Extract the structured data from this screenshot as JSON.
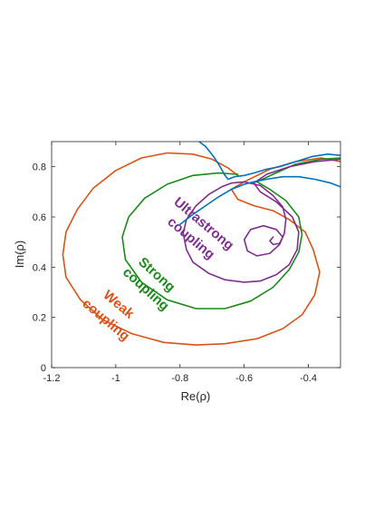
{
  "chart_data": {
    "type": "line",
    "xlabel": "Re(ρ)",
    "ylabel": "Im(ρ)",
    "xlim": [
      -1.2,
      -0.3
    ],
    "ylim": [
      0,
      0.9
    ],
    "xticks": [
      -1.2,
      -1,
      -0.8,
      -0.6,
      -0.4
    ],
    "xtick_labels": [
      "-1.2",
      "-1",
      "-0.8",
      "-0.6",
      "-0.4"
    ],
    "yticks": [
      0,
      0.2,
      0.4,
      0.6,
      0.8
    ],
    "ytick_labels": [
      "0",
      "0.2",
      "0.4",
      "0.6",
      "0.8"
    ],
    "grid": false,
    "series": [
      {
        "color": "#d95319",
        "points": [
          [
            -0.3,
            0.82
          ],
          [
            -0.36,
            0.835
          ],
          [
            -0.44,
            0.82
          ],
          [
            -0.52,
            0.79
          ],
          [
            -0.6,
            0.74
          ],
          [
            -0.64,
            0.71
          ],
          [
            -0.62,
            0.67
          ],
          [
            -0.57,
            0.645
          ],
          [
            -0.51,
            0.625
          ],
          [
            -0.46,
            0.59
          ],
          [
            -0.41,
            0.54
          ],
          [
            -0.385,
            0.47
          ],
          [
            -0.365,
            0.38
          ],
          [
            -0.38,
            0.29
          ],
          [
            -0.42,
            0.21
          ],
          [
            -0.48,
            0.155
          ],
          [
            -0.56,
            0.115
          ],
          [
            -0.66,
            0.095
          ],
          [
            -0.75,
            0.09
          ],
          [
            -0.85,
            0.1
          ],
          [
            -0.95,
            0.135
          ],
          [
            -1.04,
            0.19
          ],
          [
            -1.11,
            0.27
          ],
          [
            -1.155,
            0.36
          ],
          [
            -1.165,
            0.45
          ],
          [
            -1.155,
            0.54
          ],
          [
            -1.12,
            0.63
          ],
          [
            -1.07,
            0.715
          ],
          [
            -1.0,
            0.785
          ],
          [
            -0.92,
            0.835
          ],
          [
            -0.84,
            0.855
          ],
          [
            -0.76,
            0.85
          ],
          [
            -0.7,
            0.83
          ],
          [
            -0.65,
            0.795
          ],
          [
            -0.62,
            0.765
          ]
        ]
      },
      {
        "color": "#1a8a1a",
        "points": [
          [
            -0.3,
            0.835
          ],
          [
            -0.36,
            0.83
          ],
          [
            -0.44,
            0.81
          ],
          [
            -0.51,
            0.77
          ],
          [
            -0.56,
            0.74
          ],
          [
            -0.52,
            0.71
          ],
          [
            -0.47,
            0.665
          ],
          [
            -0.43,
            0.6
          ],
          [
            -0.42,
            0.53
          ],
          [
            -0.43,
            0.46
          ],
          [
            -0.46,
            0.39
          ],
          [
            -0.51,
            0.32
          ],
          [
            -0.58,
            0.265
          ],
          [
            -0.66,
            0.235
          ],
          [
            -0.75,
            0.235
          ],
          [
            -0.84,
            0.27
          ],
          [
            -0.92,
            0.34
          ],
          [
            -0.97,
            0.43
          ],
          [
            -0.98,
            0.52
          ],
          [
            -0.96,
            0.6
          ],
          [
            -0.91,
            0.675
          ],
          [
            -0.84,
            0.73
          ],
          [
            -0.76,
            0.765
          ],
          [
            -0.68,
            0.775
          ],
          [
            -0.62,
            0.77
          ]
        ]
      },
      {
        "color": "#7e2f8e",
        "points": [
          [
            -0.3,
            0.83
          ],
          [
            -0.38,
            0.82
          ],
          [
            -0.46,
            0.8
          ],
          [
            -0.53,
            0.77
          ],
          [
            -0.57,
            0.735
          ],
          [
            -0.55,
            0.7
          ],
          [
            -0.5,
            0.66
          ],
          [
            -0.45,
            0.6
          ],
          [
            -0.43,
            0.54
          ],
          [
            -0.435,
            0.47
          ],
          [
            -0.46,
            0.41
          ],
          [
            -0.5,
            0.37
          ],
          [
            -0.55,
            0.345
          ],
          [
            -0.6,
            0.34
          ],
          [
            -0.66,
            0.35
          ],
          [
            -0.71,
            0.375
          ],
          [
            -0.76,
            0.42
          ],
          [
            -0.78,
            0.47
          ],
          [
            -0.79,
            0.535
          ],
          [
            -0.78,
            0.59
          ],
          [
            -0.75,
            0.645
          ],
          [
            -0.71,
            0.69
          ],
          [
            -0.67,
            0.72
          ],
          [
            -0.64,
            0.735
          ],
          [
            -0.6,
            0.74
          ],
          [
            -0.55,
            0.725
          ],
          [
            -0.51,
            0.685
          ],
          [
            -0.48,
            0.64
          ],
          [
            -0.47,
            0.59
          ],
          [
            -0.475,
            0.535
          ],
          [
            -0.49,
            0.49
          ],
          [
            -0.52,
            0.455
          ],
          [
            -0.56,
            0.445
          ],
          [
            -0.59,
            0.465
          ],
          [
            -0.6,
            0.51
          ],
          [
            -0.58,
            0.55
          ],
          [
            -0.54,
            0.565
          ],
          [
            -0.5,
            0.55
          ],
          [
            -0.48,
            0.52
          ],
          [
            -0.49,
            0.495
          ],
          [
            -0.51,
            0.49
          ],
          [
            -0.52,
            0.505
          ],
          [
            -0.51,
            0.52
          ]
        ]
      },
      {
        "color": "#0072bd",
        "points": [
          [
            -0.3,
            0.72
          ],
          [
            -0.33,
            0.735
          ],
          [
            -0.38,
            0.75
          ],
          [
            -0.43,
            0.76
          ],
          [
            -0.48,
            0.76
          ],
          [
            -0.53,
            0.75
          ],
          [
            -0.57,
            0.74
          ],
          [
            -0.6,
            0.73
          ],
          [
            -0.64,
            0.71
          ],
          [
            -0.68,
            0.68
          ],
          [
            -0.72,
            0.645
          ],
          [
            -0.76,
            0.61
          ],
          [
            -0.8,
            0.57
          ]
        ]
      },
      {
        "color": "#0072bd",
        "points": [
          [
            -0.3,
            0.845
          ],
          [
            -0.34,
            0.85
          ],
          [
            -0.39,
            0.84
          ],
          [
            -0.44,
            0.82
          ],
          [
            -0.49,
            0.8
          ],
          [
            -0.53,
            0.79
          ],
          [
            -0.57,
            0.775
          ],
          [
            -0.6,
            0.765
          ],
          [
            -0.63,
            0.76
          ],
          [
            -0.65,
            0.75
          ],
          [
            -0.66,
            0.765
          ],
          [
            -0.675,
            0.8
          ],
          [
            -0.695,
            0.84
          ],
          [
            -0.72,
            0.88
          ],
          [
            -0.74,
            0.9
          ]
        ]
      }
    ],
    "annotations": [
      {
        "text": "Ultrastrong",
        "color": "#7e2f8e"
      },
      {
        "text": "coupling",
        "color": "#7e2f8e"
      },
      {
        "text": "Strong",
        "color": "#1a8a1a"
      },
      {
        "text": "coupling",
        "color": "#1a8a1a"
      },
      {
        "text": "Weak",
        "color": "#d95319"
      },
      {
        "text": "coupling",
        "color": "#d95319"
      }
    ]
  }
}
